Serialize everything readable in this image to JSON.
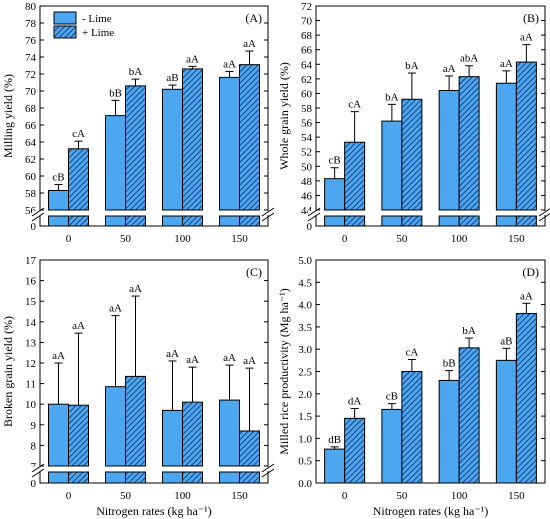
{
  "legend": {
    "items": [
      "- Lime",
      "+ Lime"
    ]
  },
  "colors": {
    "bar_fill": "#4da6f0",
    "edge": "#000000"
  },
  "chart_data": [
    {
      "panel_label": "(A)",
      "type": "bar",
      "ylabel": "Milling yield (%)",
      "xlabel": "",
      "categories": [
        "0",
        "50",
        "100",
        "150"
      ],
      "ylim": [
        56,
        80
      ],
      "yticks": [
        56,
        58,
        60,
        62,
        64,
        66,
        68,
        70,
        72,
        74,
        76,
        78,
        80
      ],
      "axis_break": true,
      "legend": "top-left",
      "series": [
        {
          "name": "- Lime",
          "values": [
            58.3,
            67.1,
            70.2,
            71.6
          ],
          "errors": [
            0.7,
            1.8,
            0.5,
            0.7
          ],
          "letters": [
            "cB",
            "bB",
            "aB",
            "aA"
          ],
          "pattern": "solid"
        },
        {
          "name": "+ Lime",
          "values": [
            63.2,
            70.6,
            72.6,
            73.1
          ],
          "errors": [
            0.9,
            0.8,
            0.3,
            1.6
          ],
          "letters": [
            "cA",
            "bA",
            "aA",
            "aA"
          ],
          "pattern": "hatch"
        }
      ]
    },
    {
      "panel_label": "(B)",
      "type": "bar",
      "ylabel": "Whole grain yield (%)",
      "xlabel": "",
      "categories": [
        "0",
        "50",
        "100",
        "150"
      ],
      "ylim": [
        44,
        72
      ],
      "yticks": [
        44,
        46,
        48,
        50,
        52,
        54,
        56,
        58,
        60,
        62,
        64,
        66,
        68,
        70,
        72
      ],
      "axis_break": true,
      "series": [
        {
          "name": "- Lime",
          "values": [
            48.3,
            56.2,
            60.4,
            61.4
          ],
          "errors": [
            1.5,
            2.3,
            2.0,
            1.7
          ],
          "letters": [
            "cB",
            "bA",
            "aA",
            "aA"
          ],
          "pattern": "solid"
        },
        {
          "name": "+ Lime",
          "values": [
            53.3,
            59.2,
            62.3,
            64.3
          ],
          "errors": [
            4.2,
            3.6,
            1.5,
            2.4
          ],
          "letters": [
            "cA",
            "bA",
            "abA",
            "aA"
          ],
          "pattern": "hatch"
        }
      ]
    },
    {
      "panel_label": "(C)",
      "type": "bar",
      "ylabel": "Broken grain yield (%)",
      "xlabel": "Nitrogen rates (kg ha⁻¹)",
      "categories": [
        "0",
        "50",
        "100",
        "150"
      ],
      "ylim": [
        7,
        17
      ],
      "yticks": [
        7,
        8,
        9,
        10,
        11,
        12,
        13,
        14,
        15,
        16,
        17
      ],
      "axis_break": true,
      "series": [
        {
          "name": "- Lime",
          "values": [
            10.0,
            10.85,
            9.7,
            10.2
          ],
          "errors": [
            2.0,
            3.45,
            2.4,
            1.7
          ],
          "letters": [
            "aA",
            "aA",
            "aA",
            "aA"
          ],
          "pattern": "solid"
        },
        {
          "name": "+ Lime",
          "values": [
            9.95,
            11.35,
            10.1,
            8.7
          ],
          "errors": [
            3.5,
            3.9,
            1.7,
            3.05
          ],
          "letters": [
            "aA",
            "aA",
            "aA",
            "aA"
          ],
          "pattern": "hatch"
        }
      ]
    },
    {
      "panel_label": "(D)",
      "type": "bar",
      "ylabel": "Milled rice productivity (Mg ha⁻¹)",
      "xlabel": "Nitrogen rates (kg ha⁻¹)",
      "categories": [
        "0",
        "50",
        "100",
        "150"
      ],
      "ylim": [
        0,
        5
      ],
      "yticks": [
        "0.0",
        "0.5",
        "1.0",
        "1.5",
        "2.0",
        "2.5",
        "3.0",
        "3.5",
        "4.0",
        "4.5",
        "5.0"
      ],
      "axis_break": false,
      "series": [
        {
          "name": "- Lime",
          "values": [
            0.76,
            1.65,
            2.3,
            2.75
          ],
          "errors": [
            0.05,
            0.13,
            0.22,
            0.27
          ],
          "letters": [
            "dB",
            "cB",
            "bB",
            "aB"
          ],
          "pattern": "solid"
        },
        {
          "name": "+ Lime",
          "values": [
            1.45,
            2.5,
            3.03,
            3.8
          ],
          "errors": [
            0.22,
            0.27,
            0.22,
            0.23
          ],
          "letters": [
            "dA",
            "cA",
            "bA",
            "aA"
          ],
          "pattern": "hatch"
        }
      ]
    }
  ]
}
